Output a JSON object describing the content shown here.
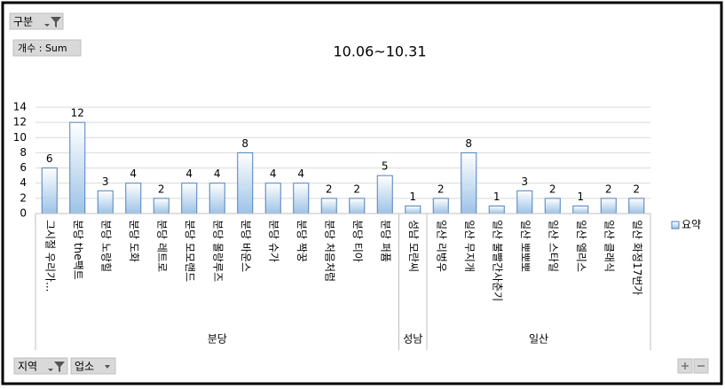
{
  "chart_data": {
    "type": "bar",
    "title": "10.06~10.31",
    "categories": [
      "그시절 우리가...",
      "분당 the팩트",
      "분당 노랑힐",
      "분당 도화",
      "분당 레트로",
      "분당 모모랜드",
      "분당 몰랑루즈",
      "분당 바운스",
      "분당 슈가",
      "분당 짝꿍",
      "분당 처음처럼",
      "분당 티아",
      "분당 퍼퓸",
      "성남 모란씨",
      "일산 리벙우",
      "일산 무지개",
      "일산 불빨간사춘기",
      "일산 뽀뽀뽀",
      "일산 스타일",
      "일산 엘리스",
      "일산 클래식",
      "일산 화정17번가"
    ],
    "series": [
      {
        "name": "요약",
        "color": "#4f81bd",
        "values": [
          6,
          12,
          3,
          4,
          2,
          4,
          4,
          8,
          4,
          4,
          2,
          2,
          5,
          1,
          2,
          8,
          1,
          3,
          2,
          1,
          2,
          2
        ]
      }
    ],
    "groups": [
      {
        "name": "분당",
        "size": 13
      },
      {
        "name": "성남",
        "size": 1
      },
      {
        "name": "일산",
        "size": 8
      }
    ],
    "ylim": [
      0,
      14
    ],
    "yticks": [
      0,
      2,
      4,
      6,
      8,
      10,
      12,
      14
    ],
    "grid": true,
    "legend": "right",
    "field_buttons": {
      "filter": "구분",
      "value": "개수 : Sum",
      "axis": [
        "지역",
        "업소"
      ]
    }
  }
}
